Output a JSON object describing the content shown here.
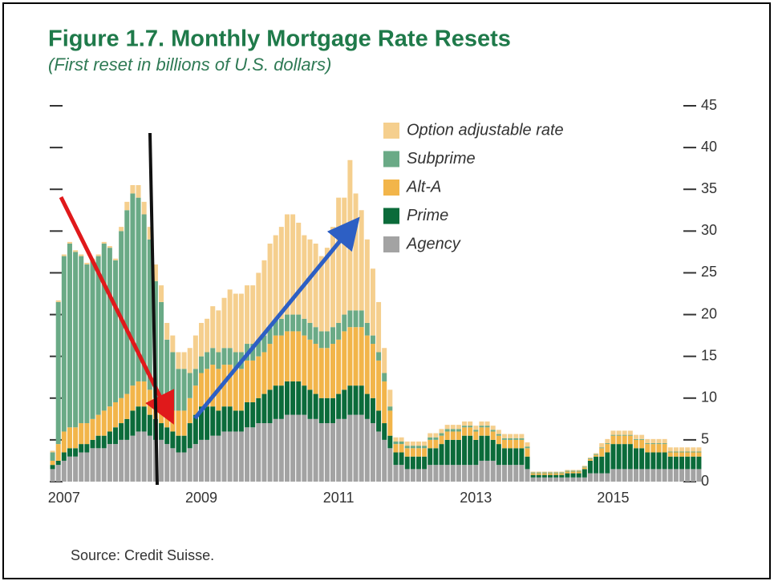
{
  "chart_data": {
    "type": "stacked_bar",
    "title": "Figure 1.7. Monthly Mortgage Rate Resets",
    "subtitle": "(First reset in billions of U.S. dollars)",
    "source": "Source: Credit Suisse.",
    "categories": [
      "2007",
      null,
      null,
      null,
      null,
      null,
      null,
      null,
      null,
      null,
      null,
      null,
      null,
      null,
      null,
      null,
      null,
      null,
      null,
      null,
      null,
      null,
      null,
      null,
      "2009",
      null,
      null,
      null,
      null,
      null,
      null,
      null,
      null,
      null,
      null,
      null,
      null,
      null,
      null,
      null,
      null,
      null,
      null,
      null,
      null,
      null,
      null,
      null,
      "2011",
      null,
      null,
      null,
      null,
      null,
      null,
      null,
      null,
      null,
      null,
      null,
      null,
      null,
      null,
      null,
      null,
      null,
      null,
      null,
      null,
      null,
      null,
      null,
      "2013",
      null,
      null,
      null,
      null,
      null,
      null,
      null,
      null,
      null,
      null,
      null,
      null,
      null,
      null,
      null,
      null,
      null,
      null,
      null,
      null,
      null,
      null,
      null,
      "2015",
      null,
      null,
      null,
      null,
      null,
      null,
      null,
      null,
      null,
      null,
      null,
      null,
      null,
      null,
      null,
      null,
      null
    ],
    "series": [
      {
        "name": "Agency",
        "color": "#a3a3a3",
        "values": [
          1.5,
          2,
          2.5,
          3,
          3,
          3.5,
          3.5,
          4,
          4,
          4,
          4.5,
          4.5,
          5,
          5,
          5.5,
          6,
          6,
          5.5,
          5,
          5,
          4.5,
          4,
          3.5,
          3.5,
          4,
          4.5,
          5,
          5,
          5.5,
          5.5,
          6,
          6,
          6,
          6,
          6.5,
          6.5,
          7,
          7,
          7,
          7.5,
          7.5,
          8,
          8,
          8,
          8,
          7.5,
          7.5,
          7,
          7,
          7,
          7.5,
          7.5,
          8,
          8,
          8,
          7.5,
          7,
          6,
          5,
          4,
          2,
          2,
          1.5,
          1.5,
          1.5,
          1.5,
          2,
          2,
          2,
          2,
          2,
          2,
          2,
          2,
          2,
          2.5,
          2.5,
          2.5,
          2,
          2,
          2,
          2,
          2,
          1.5,
          0.5,
          0.5,
          0.5,
          0.5,
          0.5,
          0.5,
          0.5,
          0.5,
          0.5,
          0.5,
          1,
          1,
          1,
          1,
          1.5,
          1.5,
          1.5,
          1.5,
          1.5,
          1.5,
          1.5,
          1.5,
          1.5,
          1.5,
          1.5,
          1.5,
          1.5,
          1.5,
          1.5,
          1.5
        ]
      },
      {
        "name": "Prime",
        "color": "#0b6b3a",
        "values": [
          0.5,
          0.5,
          1,
          1,
          1,
          1,
          1,
          1,
          1.5,
          1.5,
          1.5,
          2,
          2,
          2.5,
          3,
          3,
          3,
          2.5,
          2.5,
          2,
          2,
          2,
          2,
          2,
          3,
          3.5,
          4,
          4,
          3.5,
          3,
          3,
          3,
          2.5,
          2.5,
          3,
          3,
          3,
          3.5,
          4,
          4,
          4,
          4,
          4,
          4,
          3.5,
          3.5,
          3,
          3,
          3,
          3,
          3,
          3.5,
          3.5,
          3.5,
          3.5,
          3,
          3,
          2.5,
          2,
          1.5,
          1.5,
          1.5,
          1.5,
          1.5,
          1.5,
          1.5,
          2,
          2,
          2.5,
          3,
          3,
          3,
          3.5,
          3.5,
          3,
          3,
          3,
          2.5,
          2.5,
          2,
          2,
          2,
          2,
          1.5,
          0.3,
          0.3,
          0.3,
          0.3,
          0.3,
          0.3,
          0.5,
          0.5,
          0.5,
          1,
          1.5,
          2,
          2,
          2.5,
          3,
          3,
          3,
          3,
          2.5,
          2.5,
          2,
          2,
          2,
          2,
          1.5,
          1.5,
          1.5,
          1.5,
          1.5,
          1.5
        ]
      },
      {
        "name": "Alt-A",
        "color": "#f2b54a",
        "values": [
          0.5,
          2,
          2.5,
          2.5,
          2.5,
          2.5,
          2.5,
          2.5,
          2.5,
          3,
          3,
          3,
          3,
          3,
          3,
          3,
          3,
          3,
          2.5,
          2.5,
          2.5,
          2.5,
          3,
          3,
          3,
          3.5,
          4,
          4.5,
          5,
          5,
          5,
          5,
          5,
          5,
          5,
          5,
          5,
          5,
          5.5,
          6,
          6,
          6,
          6,
          6,
          6,
          6,
          6,
          6,
          6,
          6.5,
          6.5,
          7,
          7,
          7,
          7,
          7,
          6.5,
          6,
          5,
          3,
          1,
          1,
          1,
          1,
          1,
          1,
          1,
          1,
          1,
          1,
          1,
          1,
          1,
          1,
          1,
          1,
          1,
          1,
          1,
          1,
          1,
          1,
          1,
          1,
          0.2,
          0.2,
          0.2,
          0.2,
          0.2,
          0.2,
          0.2,
          0.2,
          0.2,
          0.2,
          0.2,
          0.2,
          1,
          1,
          1,
          1,
          1,
          1,
          1,
          1,
          1,
          1,
          1,
          1,
          0.5,
          0.5,
          0.5,
          0.5,
          0.5,
          0.5
        ]
      },
      {
        "name": "Subprime",
        "color": "#6aaa86",
        "values": [
          1,
          17,
          21,
          22,
          21,
          20,
          19,
          19,
          19,
          20,
          19,
          17,
          20,
          22,
          23,
          22,
          20,
          18,
          14,
          12,
          8,
          7,
          5,
          5,
          3,
          2,
          2,
          2,
          2,
          2,
          2,
          2,
          2,
          2,
          2,
          2,
          2,
          2,
          2,
          2,
          2,
          2,
          2,
          2,
          2,
          2,
          2,
          2,
          2,
          2,
          2,
          2,
          2,
          2,
          2,
          1.5,
          1,
          1,
          1,
          0.5,
          0.3,
          0.3,
          0.3,
          0.3,
          0.3,
          0.3,
          0.3,
          0.3,
          0.3,
          0.3,
          0.3,
          0.3,
          0.2,
          0.2,
          0.2,
          0.2,
          0.2,
          0.2,
          0.2,
          0.2,
          0.2,
          0.2,
          0.2,
          0.2,
          0.1,
          0.1,
          0.1,
          0.1,
          0.1,
          0.1,
          0.1,
          0.1,
          0.1,
          0.1,
          0.1,
          0.1,
          0.1,
          0.1,
          0.1,
          0.1,
          0.1,
          0.1,
          0.1,
          0.1,
          0.1,
          0.1,
          0.1,
          0.1,
          0.1,
          0.1,
          0.1,
          0.1,
          0.1,
          0.1
        ]
      },
      {
        "name": "Option adjustable rate",
        "color": "#f5cf8e",
        "values": [
          0.2,
          0.2,
          0.2,
          0.2,
          0.2,
          0.2,
          0.2,
          0.2,
          0.2,
          0.2,
          0.2,
          0.2,
          0.5,
          1,
          1,
          1.5,
          1.5,
          1.5,
          2,
          2,
          2,
          2,
          2,
          2,
          3,
          4,
          4,
          4,
          5,
          5,
          6,
          7,
          7,
          7,
          7,
          7,
          8,
          9,
          10,
          10,
          11,
          12,
          12,
          11,
          10,
          10,
          10,
          9,
          10,
          12,
          15,
          14,
          18,
          14,
          12,
          10,
          8,
          6,
          3,
          2,
          0.5,
          0.5,
          0.5,
          0.5,
          0.5,
          0.5,
          0.5,
          0.5,
          0.5,
          0.5,
          0.5,
          0.5,
          0.5,
          0.5,
          0.5,
          0.5,
          0.5,
          0.5,
          0.5,
          0.5,
          0.5,
          0.5,
          0.5,
          0.5,
          0.1,
          0.1,
          0.1,
          0.1,
          0.1,
          0.1,
          0.1,
          0.1,
          0.1,
          0.1,
          0.1,
          0.1,
          0.5,
          0.5,
          0.5,
          0.5,
          0.5,
          0.5,
          0.5,
          0.5,
          0.5,
          0.5,
          0.5,
          0.5,
          0.5,
          0.5,
          0.5,
          0.5,
          0.5,
          0.5
        ]
      }
    ],
    "ylim": [
      0,
      45
    ],
    "yticks": [
      0,
      5,
      10,
      15,
      20,
      25,
      30,
      35,
      40,
      45
    ],
    "grid": false
  }
}
